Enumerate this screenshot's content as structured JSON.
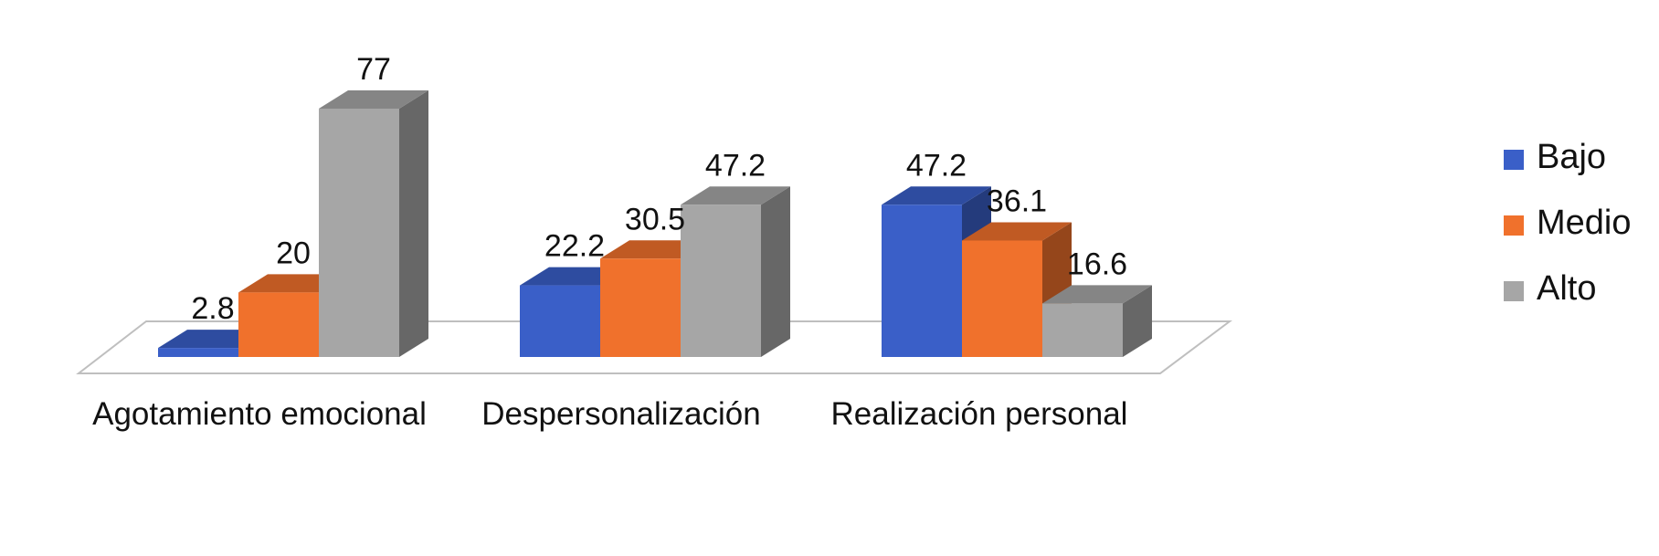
{
  "chart_data": {
    "type": "bar",
    "style": "3d-clustered-column",
    "categories": [
      "Agotamiento emocional",
      "Despersonalización",
      "Realización personal"
    ],
    "series": [
      {
        "name": "Bajo",
        "values": [
          2.8,
          22.2,
          47.2
        ],
        "labels": [
          "2.8",
          "22.2",
          "47.2"
        ],
        "color": "#3a5fc8"
      },
      {
        "name": "Medio",
        "values": [
          20,
          30.5,
          36.1
        ],
        "labels": [
          "20",
          "30.5",
          "36.1"
        ],
        "color": "#f0712c"
      },
      {
        "name": "Alto",
        "values": [
          77,
          47.2,
          16.6
        ],
        "labels": [
          "77",
          "47.2",
          "16.6"
        ],
        "color": "#a6a6a6"
      }
    ],
    "ylim": [
      0,
      77
    ],
    "grid": false,
    "legend": "right"
  }
}
